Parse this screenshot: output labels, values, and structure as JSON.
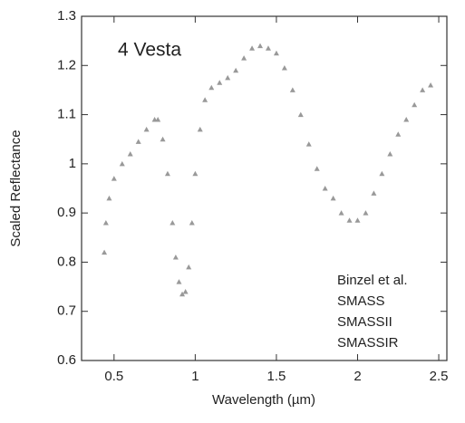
{
  "chart_data": {
    "type": "scatter",
    "title": "4 Vesta",
    "xlabel": "Wavelength (µm)",
    "ylabel": "Scaled Reflectance",
    "annotations": [
      "Binzel et al.",
      "SMASS",
      "SMASSII",
      "SMASSIR"
    ],
    "color": "#999999",
    "xlim": [
      0.3,
      2.55
    ],
    "ylim": [
      0.6,
      1.3
    ],
    "xticks": [
      0.5,
      1,
      1.5,
      2,
      2.5
    ],
    "yticks": [
      0.6,
      0.7,
      0.8,
      0.9,
      1,
      1.1,
      1.2,
      1.3
    ],
    "x": [
      0.44,
      0.45,
      0.47,
      0.5,
      0.55,
      0.6,
      0.65,
      0.7,
      0.75,
      0.77,
      0.8,
      0.83,
      0.86,
      0.88,
      0.9,
      0.92,
      0.94,
      0.96,
      0.98,
      1.0,
      1.03,
      1.06,
      1.1,
      1.15,
      1.2,
      1.25,
      1.3,
      1.35,
      1.4,
      1.45,
      1.5,
      1.55,
      1.6,
      1.65,
      1.7,
      1.75,
      1.8,
      1.85,
      1.9,
      1.95,
      2.0,
      2.05,
      2.1,
      2.15,
      2.2,
      2.25,
      2.3,
      2.35,
      2.4,
      2.45
    ],
    "values": [
      0.82,
      0.88,
      0.93,
      0.97,
      1.0,
      1.02,
      1.045,
      1.07,
      1.09,
      1.09,
      1.05,
      0.98,
      0.88,
      0.81,
      0.76,
      0.735,
      0.74,
      0.79,
      0.88,
      0.98,
      1.07,
      1.13,
      1.155,
      1.165,
      1.175,
      1.19,
      1.215,
      1.235,
      1.24,
      1.235,
      1.225,
      1.195,
      1.15,
      1.1,
      1.04,
      0.99,
      0.95,
      0.93,
      0.9,
      0.885,
      0.885,
      0.9,
      0.94,
      0.98,
      1.02,
      1.06,
      1.09,
      1.12,
      1.15,
      1.16
    ]
  }
}
